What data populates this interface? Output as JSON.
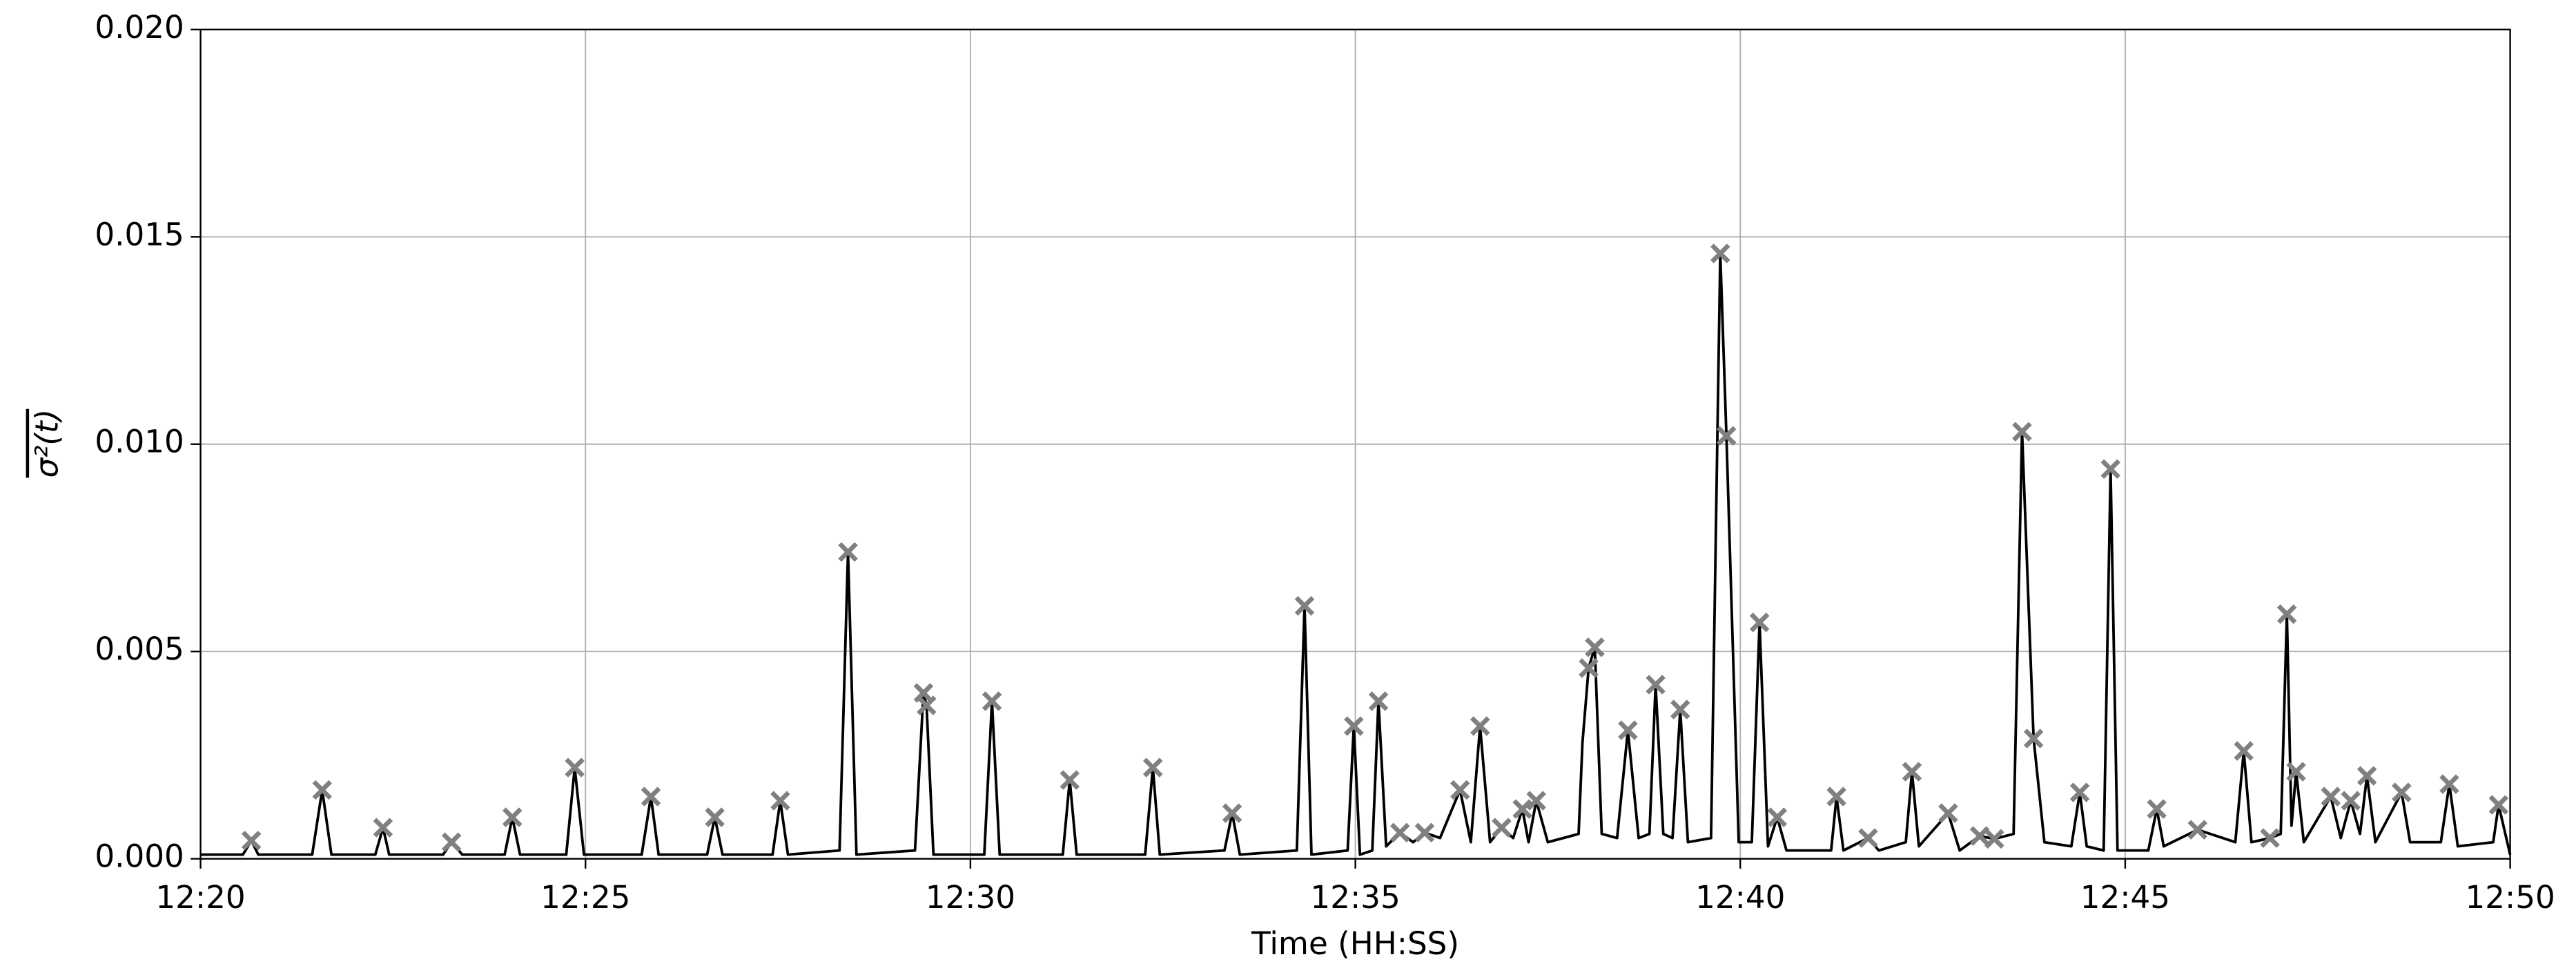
{
  "chart_data": {
    "type": "line",
    "xlabel": "Time (HH:SS)",
    "ylabel": "σ²(t)",
    "xlim": [
      20,
      50
    ],
    "ylim": [
      0,
      0.02
    ],
    "xticks": [
      {
        "value": 20,
        "label": "12:20"
      },
      {
        "value": 25,
        "label": "12:25"
      },
      {
        "value": 30,
        "label": "12:30"
      },
      {
        "value": 35,
        "label": "12:35"
      },
      {
        "value": 40,
        "label": "12:40"
      },
      {
        "value": 45,
        "label": "12:45"
      },
      {
        "value": 50,
        "label": "12:50"
      }
    ],
    "yticks": [
      {
        "value": 0,
        "label": "0.000"
      },
      {
        "value": 0.005,
        "label": "0.005"
      },
      {
        "value": 0.01,
        "label": "0.010"
      },
      {
        "value": 0.015,
        "label": "0.015"
      },
      {
        "value": 0.02,
        "label": "0.020"
      }
    ],
    "grid": true,
    "series": [
      {
        "color": "#000000",
        "x": [
          20,
          20.55,
          20.66,
          20.75,
          21.45,
          21.58,
          21.7,
          22.27,
          22.37,
          22.45,
          23.15,
          23.26,
          23.4,
          23.95,
          24.05,
          24.15,
          24.75,
          24.86,
          24.98,
          25.73,
          25.85,
          25.95,
          26.58,
          26.68,
          26.78,
          27.43,
          27.53,
          27.63,
          28.3,
          28.41,
          28.52,
          29.28,
          29.39,
          29.43,
          29.52,
          30.18,
          30.28,
          30.38,
          31.2,
          31.29,
          31.38,
          32.27,
          32.37,
          32.46,
          33.3,
          33.4,
          33.5,
          34.24,
          34.34,
          34.43,
          34.9,
          34.98,
          35.06,
          35.22,
          35.3,
          35.4,
          35.58,
          35.75,
          35.9,
          36.1,
          36.36,
          36.5,
          36.62,
          36.75,
          36.9,
          37.05,
          37.17,
          37.25,
          37.35,
          37.5,
          37.9,
          37.95,
          38.03,
          38.11,
          38.2,
          38.4,
          38.54,
          38.68,
          38.82,
          38.9,
          39.0,
          39.12,
          39.22,
          39.32,
          39.62,
          39.74,
          39.82,
          39.98,
          40.15,
          40.25,
          40.36,
          40.48,
          40.6,
          41.18,
          41.25,
          41.34,
          41.66,
          41.8,
          42.15,
          42.23,
          42.32,
          42.7,
          42.85,
          43.11,
          43.3,
          43.55,
          43.66,
          43.81,
          43.95,
          44.3,
          44.41,
          44.5,
          44.72,
          44.81,
          44.9,
          45.3,
          45.41,
          45.5,
          45.94,
          46.43,
          46.54,
          46.64,
          46.88,
          47.02,
          47.1,
          47.16,
          47.22,
          47.32,
          47.67,
          47.8,
          47.93,
          48.05,
          48.14,
          48.25,
          48.59,
          48.7,
          49.1,
          49.21,
          49.32,
          49.78,
          49.85,
          50
        ],
        "values": [
          0.0001,
          0.0001,
          0.00044,
          0.0001,
          0.0001,
          0.00166,
          0.0001,
          0.0001,
          0.00075,
          0.0001,
          0.0001,
          0.0004,
          0.0001,
          0.0001,
          0.001,
          0.0001,
          0.0001,
          0.0022,
          0.0001,
          0.0001,
          0.0015,
          0.0001,
          0.0001,
          0.001,
          0.0001,
          0.0001,
          0.0014,
          0.0001,
          0.0002,
          0.0074,
          0.0001,
          0.0002,
          0.004,
          0.0037,
          0.0001,
          0.0001,
          0.0038,
          0.0001,
          0.0001,
          0.0019,
          0.0001,
          0.0001,
          0.0022,
          0.0001,
          0.0002,
          0.0011,
          0.0001,
          0.0002,
          0.0061,
          0.0001,
          0.0002,
          0.0032,
          0.0001,
          0.0002,
          0.0038,
          0.0003,
          0.00063,
          0.0004,
          0.00063,
          0.0005,
          0.00166,
          0.0004,
          0.0032,
          0.0004,
          0.00075,
          0.0005,
          0.0012,
          0.0004,
          0.0014,
          0.0004,
          0.0006,
          0.0028,
          0.0046,
          0.0051,
          0.0006,
          0.0005,
          0.0031,
          0.0005,
          0.0006,
          0.0042,
          0.0006,
          0.0005,
          0.0036,
          0.0004,
          0.0005,
          0.0146,
          0.0102,
          0.0004,
          0.0004,
          0.0057,
          0.0003,
          0.001,
          0.0002,
          0.0002,
          0.0015,
          0.0002,
          0.0005,
          0.0002,
          0.0004,
          0.0021,
          0.0003,
          0.0011,
          0.0002,
          0.00055,
          0.00048,
          0.0006,
          0.0103,
          0.0029,
          0.0004,
          0.0003,
          0.0016,
          0.0003,
          0.0002,
          0.0094,
          0.0002,
          0.0002,
          0.0012,
          0.0003,
          0.0007,
          0.0004,
          0.0026,
          0.0004,
          0.0005,
          0.0006,
          0.0059,
          0.0008,
          0.0021,
          0.0004,
          0.0015,
          0.0005,
          0.0014,
          0.0006,
          0.002,
          0.0004,
          0.0016,
          0.0004,
          0.0004,
          0.0018,
          0.0003,
          0.0004,
          0.0013,
          0.0001
        ]
      },
      {
        "color": "#808080",
        "marker": "x",
        "x": [
          20.66,
          21.58,
          22.37,
          23.26,
          24.05,
          24.86,
          25.85,
          26.68,
          27.53,
          28.41,
          29.39,
          29.43,
          30.28,
          31.29,
          32.37,
          33.4,
          34.34,
          34.98,
          35.3,
          35.58,
          35.9,
          36.36,
          36.62,
          36.9,
          37.17,
          37.35,
          38.03,
          38.11,
          38.54,
          38.9,
          39.22,
          39.74,
          39.82,
          40.25,
          40.48,
          41.25,
          41.66,
          42.23,
          42.7,
          43.11,
          43.3,
          43.66,
          43.81,
          44.41,
          44.81,
          45.41,
          45.94,
          46.54,
          46.88,
          47.1,
          47.22,
          47.67,
          47.93,
          48.14,
          48.59,
          49.21,
          49.85
        ],
        "values": [
          0.00044,
          0.00166,
          0.00075,
          0.0004,
          0.001,
          0.0022,
          0.0015,
          0.001,
          0.0014,
          0.0074,
          0.004,
          0.0037,
          0.0038,
          0.0019,
          0.0022,
          0.0011,
          0.0061,
          0.0032,
          0.0038,
          0.00063,
          0.00063,
          0.00166,
          0.0032,
          0.00075,
          0.0012,
          0.0014,
          0.0046,
          0.0051,
          0.0031,
          0.0042,
          0.0036,
          0.0146,
          0.0102,
          0.0057,
          0.001,
          0.0015,
          0.0005,
          0.0021,
          0.0011,
          0.00055,
          0.00048,
          0.0103,
          0.0029,
          0.0016,
          0.0094,
          0.0012,
          0.0007,
          0.0026,
          0.0005,
          0.0059,
          0.0021,
          0.0015,
          0.0014,
          0.002,
          0.0016,
          0.0018,
          0.0013
        ]
      }
    ]
  }
}
